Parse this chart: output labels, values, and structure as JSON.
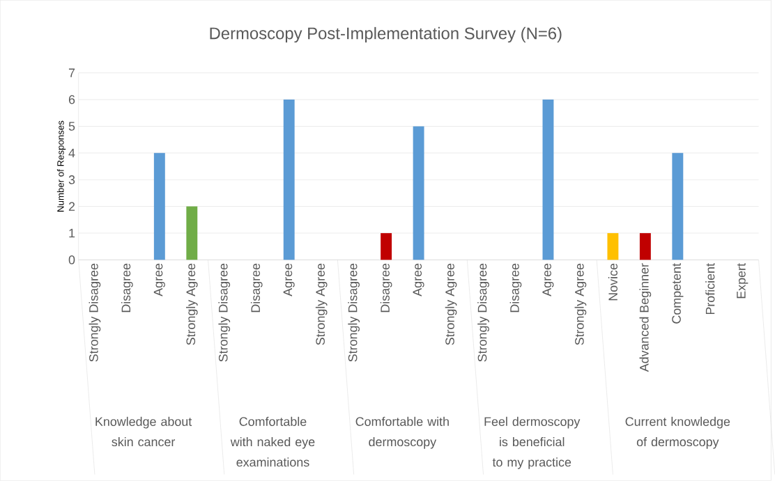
{
  "chart_data": {
    "type": "bar",
    "title": "Dermoscopy Post-Implementation Survey (N=6)",
    "ylabel": "Number of Responses",
    "categories": [
      "Strongly Disagree",
      "Disagree",
      "Agree",
      "Strongly Agree",
      "Strongly Disagree",
      "Disagree",
      "Agree",
      "Strongly Agree",
      "Strongly Disagree",
      "Disagree",
      "Agree",
      "Strongly Agree",
      "Strongly Disagree",
      "Disagree",
      "Agree",
      "Strongly Agree",
      "Novice",
      "Advanced Beginner",
      "Competent",
      "Proficient",
      "Expert"
    ],
    "values": [
      0,
      0,
      4,
      2,
      0,
      0,
      6,
      0,
      0,
      1,
      5,
      0,
      0,
      0,
      6,
      0,
      1,
      1,
      4,
      0,
      0
    ],
    "colors": [
      "#5b9bd5",
      "#5b9bd5",
      "#5b9bd5",
      "#70ad47",
      "#5b9bd5",
      "#5b9bd5",
      "#5b9bd5",
      "#5b9bd5",
      "#5b9bd5",
      "#c00000",
      "#5b9bd5",
      "#5b9bd5",
      "#5b9bd5",
      "#5b9bd5",
      "#5b9bd5",
      "#5b9bd5",
      "#ffc000",
      "#c00000",
      "#5b9bd5",
      "#5b9bd5",
      "#5b9bd5"
    ],
    "annotations": [
      "Knowledge about skin cancer",
      "Comfortable with naked eye examinations",
      "Comfortable with dermoscopy",
      "Feel dermoscopy is beneficial to my practice",
      "Current knowledge of dermoscopy"
    ],
    "ylim": [
      0,
      7
    ],
    "yticks": [
      0,
      1,
      2,
      3,
      4,
      5,
      6,
      7
    ],
    "grid": "y"
  }
}
